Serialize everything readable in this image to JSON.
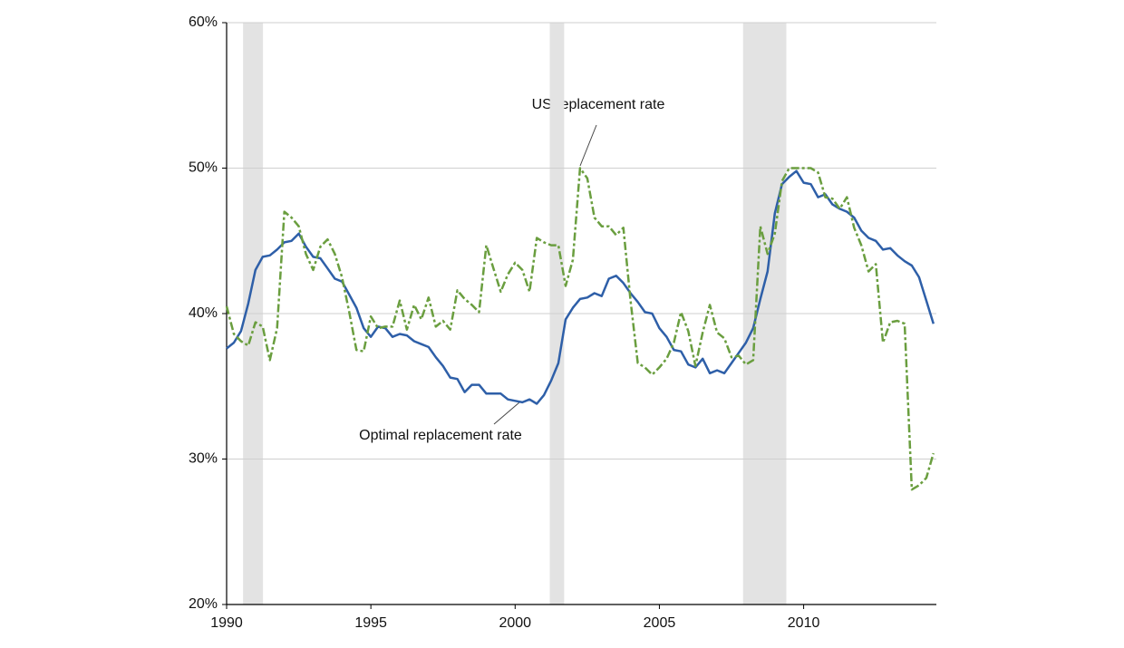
{
  "chart_data": {
    "type": "line",
    "x": [
      1990,
      1990.25,
      1990.5,
      1990.75,
      1991,
      1991.25,
      1991.5,
      1991.75,
      1992,
      1992.25,
      1992.5,
      1992.75,
      1993,
      1993.25,
      1993.5,
      1993.75,
      1994,
      1994.25,
      1994.5,
      1994.75,
      1995,
      1995.25,
      1995.5,
      1995.75,
      1996,
      1996.25,
      1996.5,
      1996.75,
      1997,
      1997.25,
      1997.5,
      1997.75,
      1998,
      1998.25,
      1998.5,
      1998.75,
      1999,
      1999.25,
      1999.5,
      1999.75,
      2000,
      2000.25,
      2000.5,
      2000.75,
      2001,
      2001.25,
      2001.5,
      2001.75,
      2002,
      2002.25,
      2002.5,
      2002.75,
      2003,
      2003.25,
      2003.5,
      2003.75,
      2004,
      2004.25,
      2004.5,
      2004.75,
      2005,
      2005.25,
      2005.5,
      2005.75,
      2006,
      2006.25,
      2006.5,
      2006.75,
      2007,
      2007.25,
      2007.5,
      2007.75,
      2008,
      2008.25,
      2008.5,
      2008.75,
      2009,
      2009.25,
      2009.5,
      2009.75,
      2010,
      2010.25,
      2010.5,
      2010.75,
      2011,
      2011.25,
      2011.5,
      2011.75,
      2012,
      2012.25,
      2012.5,
      2012.75,
      2013,
      2013.25,
      2013.5,
      2013.75,
      2014,
      2014.25,
      2014.5
    ],
    "series": [
      {
        "name": "Optimal replacement rate",
        "color": "#2e5fa8",
        "dashed": false,
        "values": [
          37.6,
          38.0,
          38.8,
          40.7,
          43.0,
          43.9,
          44.0,
          44.4,
          44.9,
          45.0,
          45.5,
          44.6,
          43.9,
          43.8,
          43.1,
          42.4,
          42.2,
          41.3,
          40.4,
          39.0,
          38.4,
          39.1,
          39.0,
          38.4,
          38.6,
          38.5,
          38.1,
          37.9,
          37.7,
          37.0,
          36.4,
          35.6,
          35.5,
          34.6,
          35.1,
          35.1,
          34.5,
          34.5,
          34.5,
          34.1,
          34.0,
          33.9,
          34.1,
          33.8,
          34.4,
          35.4,
          36.6,
          39.6,
          40.4,
          41.0,
          41.1,
          41.4,
          41.2,
          42.4,
          42.6,
          42.1,
          41.4,
          40.8,
          40.1,
          40.0,
          39.0,
          38.4,
          37.5,
          37.4,
          36.5,
          36.3,
          36.9,
          35.9,
          36.1,
          35.9,
          36.6,
          37.3,
          38.0,
          39.0,
          41.0,
          42.9,
          46.9,
          48.9,
          49.4,
          49.8,
          49.0,
          48.9,
          48.0,
          48.2,
          47.5,
          47.2,
          47.0,
          46.6,
          45.7,
          45.2,
          45.0,
          44.4,
          44.5,
          44.0,
          43.6,
          43.3,
          42.5,
          40.9,
          39.3
        ]
      },
      {
        "name": "US replacement rate",
        "color": "#6a9e3f",
        "dashed": true,
        "values": [
          40.5,
          38.6,
          38.1,
          37.8,
          39.4,
          39.1,
          36.8,
          39.0,
          47.0,
          46.6,
          46.0,
          44.1,
          43.0,
          44.6,
          45.1,
          44.1,
          42.5,
          40.1,
          37.5,
          37.4,
          39.8,
          39.0,
          39.1,
          39.1,
          40.9,
          38.9,
          40.6,
          39.6,
          41.1,
          39.1,
          39.5,
          38.9,
          41.6,
          41.0,
          40.6,
          40.1,
          44.7,
          43.1,
          41.5,
          42.7,
          43.5,
          43.0,
          41.5,
          45.2,
          44.9,
          44.7,
          44.7,
          41.9,
          43.7,
          50.0,
          49.3,
          46.6,
          46.0,
          46.0,
          45.4,
          45.9,
          40.9,
          36.6,
          36.3,
          35.8,
          36.3,
          36.9,
          38.0,
          40.1,
          38.8,
          36.4,
          38.7,
          40.6,
          38.7,
          38.3,
          37.0,
          37.1,
          36.5,
          36.8,
          46.0,
          44.1,
          45.5,
          49.1,
          50.0,
          50.0,
          50.0,
          50.0,
          49.7,
          48.0,
          47.9,
          47.2,
          48.0,
          45.9,
          44.7,
          42.9,
          43.4,
          38.0,
          39.4,
          39.5,
          39.3,
          27.9,
          28.2,
          28.7,
          30.4
        ]
      }
    ],
    "recessions": [
      {
        "start": 1990.57,
        "end": 1991.26
      },
      {
        "start": 2001.2,
        "end": 2001.7
      },
      {
        "start": 2007.9,
        "end": 2009.4
      }
    ],
    "recession_color": "#e3e3e3",
    "xlim": [
      1990,
      2014.6
    ],
    "xticks": [
      1990,
      1995,
      2000,
      2005,
      2010
    ],
    "ylim": [
      20,
      60
    ],
    "yticks": [
      {
        "value": 20,
        "label": "20%"
      },
      {
        "value": 30,
        "label": "30%"
      },
      {
        "value": 40,
        "label": "40%"
      },
      {
        "value": 50,
        "label": "50%"
      },
      {
        "value": 60,
        "label": "60%"
      }
    ],
    "grid": true
  }
}
